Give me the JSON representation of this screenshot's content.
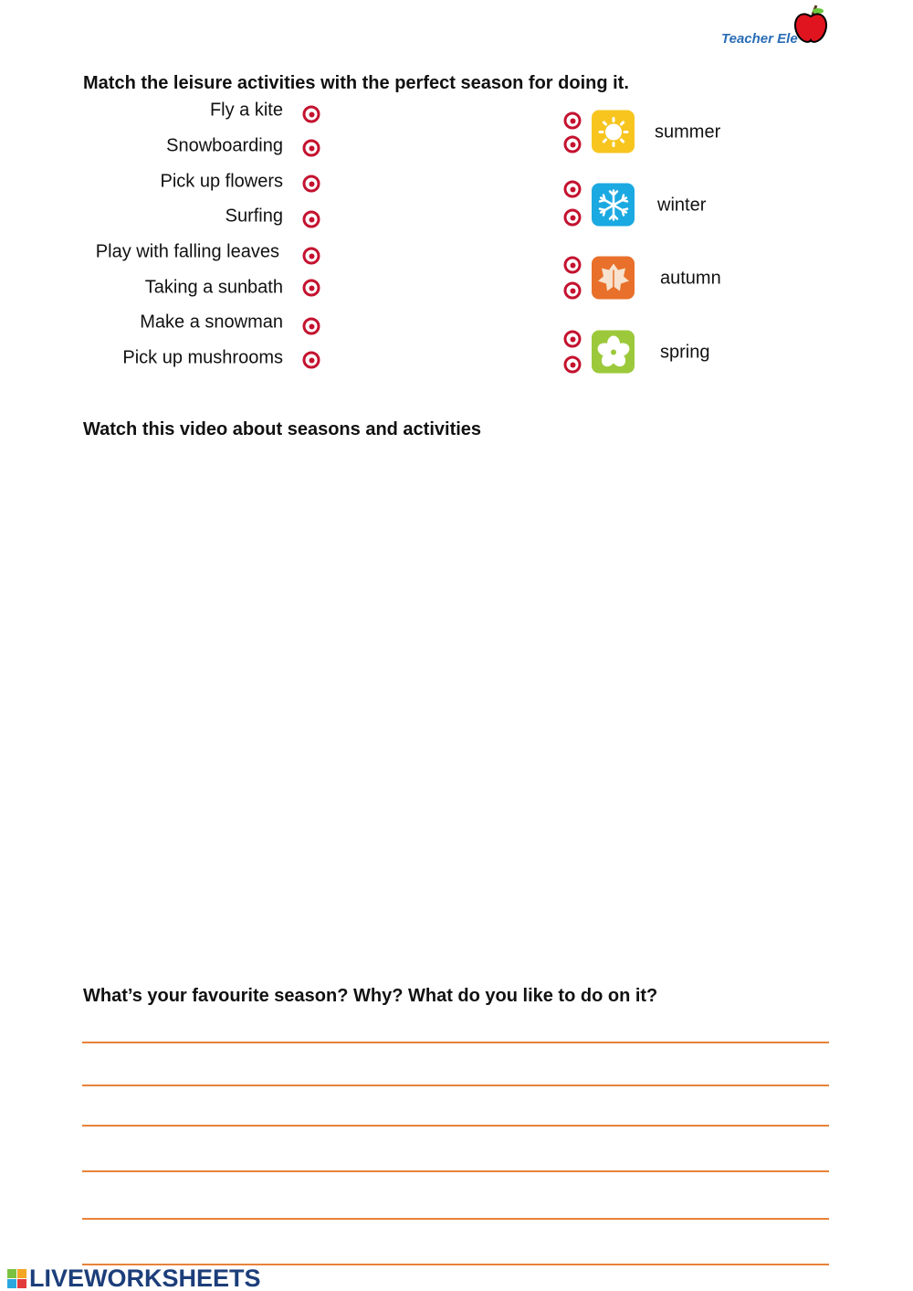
{
  "logo": {
    "text": "Teacher Ele",
    "icon": "apple-icon"
  },
  "section1": {
    "title": "Match the leisure activities with the perfect season for doing it.",
    "activities": [
      "Fly a kite",
      "Snowboarding",
      "Pick up flowers",
      "Surfing",
      "Play with falling leaves",
      "Taking a sunbath",
      "Make a snowman",
      "Pick up mushrooms"
    ],
    "seasons": [
      {
        "label": "summer",
        "icon": "sun-icon",
        "color": "#f7c51e"
      },
      {
        "label": "winter",
        "icon": "snowflake-icon",
        "color": "#1ba9e1"
      },
      {
        "label": "autumn",
        "icon": "leaf-icon",
        "color": "#e8702a"
      },
      {
        "label": "spring",
        "icon": "hibiscus-icon",
        "color": "#9cc93b"
      }
    ],
    "dot_color": "#c4122f"
  },
  "section2": {
    "title": "Watch this video about seasons and activities"
  },
  "section3": {
    "title": "What’s your favourite season? Why? What do you like to do on it?",
    "line_color": "#e8823a",
    "line_count": 6
  },
  "footer": {
    "brand": "LIVEWORKSHEETS"
  }
}
